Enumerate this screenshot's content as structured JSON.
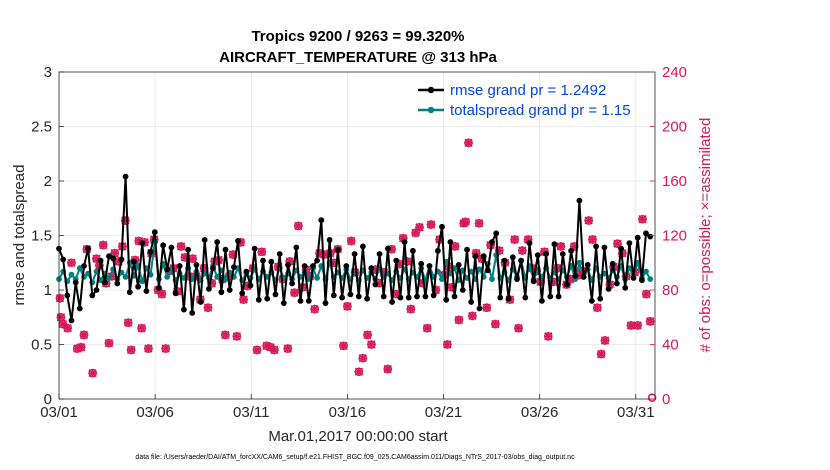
{
  "chart_data": {
    "type": "line",
    "title": "Tropics 9200 / 9263 = 99.320%",
    "subtitle": "AIRCRAFT_TEMPERATURE @ 313 hPa",
    "xlabel": "Mar.01,2017 00:00:00 start",
    "ylabel": "rmse and totalspread",
    "y2label": "# of obs: o=possible; ×=assimilated",
    "footnote": "data file: /Users/raeder/DAI/ATM_forcXX/CAM6_setup/f.e21.FHIST_BGC.f09_025.CAM6assim.011/Diags_NTrS_2017-03/obs_diag_output.nc",
    "x_tick_labels": [
      "03/01",
      "03/06",
      "03/11",
      "03/16",
      "03/21",
      "03/26",
      "03/31"
    ],
    "x_ticks_day": [
      0,
      5,
      10,
      15,
      20,
      25,
      30
    ],
    "xlim": [
      0,
      31
    ],
    "ylim": [
      0,
      3
    ],
    "y_tick_labels": [
      "0",
      "0.5",
      "1",
      "1.5",
      "2",
      "2.5",
      "3"
    ],
    "y2lim": [
      0,
      240
    ],
    "y2_tick_labels": [
      "0",
      "40",
      "80",
      "120",
      "160",
      "200",
      "240"
    ],
    "colors": {
      "rmse": "#000000",
      "spread": "#008080",
      "obs": "#d6195a",
      "legend_text": "#0046e0"
    },
    "series": [
      {
        "name": "rmse grand pr = 1.2492",
        "key": "rmse",
        "values": [
          1.38,
          1.28,
          0.95,
          0.72,
          1.07,
          0.83,
          1.22,
          1.38,
          0.95,
          1.0,
          1.27,
          1.07,
          1.31,
          1.29,
          1.06,
          1.28,
          2.04,
          0.98,
          1.26,
          1.03,
          1.43,
          0.99,
          1.35,
          1.53,
          1.02,
          1.41,
          1.19,
          1.39,
          0.97,
          1.22,
          0.82,
          1.37,
          0.79,
          1.23,
          0.89,
          1.46,
          1.01,
          1.2,
          1.44,
          0.98,
          1.37,
          1.0,
          1.21,
          1.45,
          0.97,
          1.17,
          1.04,
          1.38,
          0.91,
          1.27,
          0.92,
          1.26,
          0.96,
          1.33,
          0.88,
          1.23,
          1.06,
          1.39,
          0.9,
          1.22,
          0.9,
          1.22,
          1.27,
          1.64,
          0.88,
          1.46,
          0.95,
          1.37,
          0.93,
          1.22,
          0.96,
          1.33,
          0.94,
          1.4,
          0.92,
          1.2,
          1.05,
          1.33,
          0.94,
          1.38,
          0.89,
          1.27,
          0.93,
          1.44,
          0.93,
          1.36,
          0.94,
          1.24,
          0.94,
          1.22,
          0.95,
          1.36,
          1.58,
          0.91,
          1.44,
          0.94,
          1.23,
          1.0,
          1.37,
          0.89,
          1.31,
          0.83,
          1.31,
          1.18,
          1.44,
          1.52,
          0.93,
          1.27,
          0.92,
          1.3,
          1.1,
          1.27,
          0.93,
          1.43,
          1.08,
          1.32,
          0.9,
          1.33,
          0.94,
          1.42,
          0.94,
          1.33,
          1.05,
          1.36,
          1.13,
          1.82,
          1.12,
          1.23,
          0.9,
          1.4,
          0.92,
          1.39,
          1.01,
          1.24,
          1.06,
          1.38,
          1.02,
          1.43,
          1.11,
          1.48,
          1.09,
          1.52,
          1.49
        ]
      },
      {
        "name": "totalspread grand pr = 1.15",
        "key": "spread",
        "values": [
          1.1,
          1.17,
          1.08,
          1.14,
          1.1,
          1.2,
          1.12,
          1.15,
          1.07,
          1.17,
          1.09,
          1.15,
          1.11,
          1.19,
          1.1,
          1.16,
          1.12,
          1.25,
          1.13,
          1.22,
          1.08,
          1.2,
          1.14,
          1.44,
          1.1,
          1.24,
          1.12,
          1.18,
          1.09,
          1.15,
          1.11,
          1.2,
          1.1,
          1.17,
          1.09,
          1.15,
          1.11,
          1.22,
          1.12,
          1.18,
          1.1,
          1.16,
          1.12,
          1.2,
          1.09,
          1.15,
          1.11,
          1.19,
          1.1,
          1.17,
          1.12,
          1.16,
          1.09,
          1.2,
          1.11,
          1.15,
          1.1,
          1.18,
          1.12,
          1.16,
          1.1,
          1.2,
          1.11,
          1.22,
          1.1,
          1.25,
          1.12,
          1.16,
          1.11,
          1.19,
          1.1,
          1.15,
          1.09,
          1.18,
          1.11,
          1.16,
          1.1,
          1.2,
          1.12,
          1.15,
          1.09,
          1.17,
          1.11,
          1.19,
          1.1,
          1.16,
          1.12,
          1.2,
          1.09,
          1.22,
          1.12,
          1.17,
          1.1,
          1.26,
          1.15,
          1.2,
          1.09,
          1.18,
          1.11,
          1.17,
          1.1,
          1.19,
          1.12,
          1.24,
          1.1,
          1.32,
          1.11,
          1.16,
          1.09,
          1.19,
          1.12,
          1.27,
          1.11,
          1.22,
          1.1,
          1.18,
          1.12,
          1.2,
          1.11,
          1.16,
          1.1,
          1.18,
          1.12,
          1.22,
          1.1,
          1.25,
          1.12,
          1.19,
          1.09,
          1.2,
          1.12,
          1.15,
          1.11,
          1.18,
          1.12,
          1.22,
          1.1,
          1.2,
          1.14,
          1.25,
          1.11,
          1.17,
          1.1
        ]
      }
    ],
    "obs_possible": [
      [
        0.05,
        74
      ],
      [
        0.1,
        60
      ],
      [
        0.2,
        55
      ],
      [
        0.45,
        52
      ],
      [
        0.65,
        100
      ],
      [
        0.95,
        37
      ],
      [
        1.15,
        38
      ],
      [
        1.3,
        47
      ],
      [
        1.45,
        110
      ],
      [
        1.75,
        19
      ],
      [
        1.95,
        103
      ],
      [
        2.1,
        98
      ],
      [
        2.3,
        113
      ],
      [
        2.45,
        85
      ],
      [
        2.6,
        41
      ],
      [
        2.75,
        90
      ],
      [
        2.9,
        107
      ],
      [
        3.1,
        101
      ],
      [
        3.3,
        112
      ],
      [
        3.45,
        131
      ],
      [
        3.6,
        56
      ],
      [
        3.75,
        36
      ],
      [
        3.95,
        102
      ],
      [
        4.15,
        116
      ],
      [
        4.3,
        52
      ],
      [
        4.45,
        115
      ],
      [
        4.65,
        37
      ],
      [
        4.8,
        107
      ],
      [
        4.95,
        117
      ],
      [
        5.15,
        80
      ],
      [
        5.35,
        77
      ],
      [
        5.55,
        37
      ],
      [
        5.75,
        94
      ],
      [
        5.95,
        96
      ],
      [
        6.15,
        79
      ],
      [
        6.35,
        112
      ],
      [
        6.55,
        104
      ],
      [
        6.75,
        90
      ],
      [
        6.95,
        103
      ],
      [
        7.15,
        90
      ],
      [
        7.35,
        73
      ],
      [
        7.55,
        96
      ],
      [
        7.75,
        67
      ],
      [
        7.95,
        85
      ],
      [
        8.1,
        101
      ],
      [
        8.3,
        102
      ],
      [
        8.5,
        88
      ],
      [
        8.65,
        47
      ],
      [
        8.85,
        90
      ],
      [
        9.05,
        106
      ],
      [
        9.25,
        46
      ],
      [
        9.45,
        115
      ],
      [
        9.6,
        73
      ],
      [
        9.8,
        83
      ],
      [
        10.1,
        96
      ],
      [
        10.3,
        36
      ],
      [
        10.55,
        108
      ],
      [
        10.8,
        39
      ],
      [
        11.0,
        38
      ],
      [
        11.2,
        36
      ],
      [
        11.4,
        97
      ],
      [
        11.65,
        88
      ],
      [
        11.9,
        37
      ],
      [
        12.0,
        101
      ],
      [
        12.25,
        78
      ],
      [
        12.45,
        127
      ],
      [
        12.65,
        82
      ],
      [
        12.85,
        95
      ],
      [
        13.05,
        90
      ],
      [
        13.3,
        66
      ],
      [
        13.55,
        107
      ],
      [
        13.8,
        106
      ],
      [
        14.1,
        107
      ],
      [
        14.3,
        100
      ],
      [
        14.5,
        110
      ],
      [
        14.8,
        39
      ],
      [
        15.0,
        68
      ],
      [
        15.2,
        116
      ],
      [
        15.4,
        93
      ],
      [
        15.6,
        20
      ],
      [
        15.8,
        30
      ],
      [
        16.05,
        47
      ],
      [
        16.25,
        40
      ],
      [
        16.45,
        95
      ],
      [
        16.65,
        85
      ],
      [
        16.9,
        93
      ],
      [
        17.1,
        22
      ],
      [
        17.3,
        110
      ],
      [
        17.55,
        77
      ],
      [
        17.7,
        99
      ],
      [
        17.9,
        118
      ],
      [
        18.1,
        101
      ],
      [
        18.3,
        66
      ],
      [
        18.55,
        122
      ],
      [
        18.75,
        126
      ],
      [
        18.95,
        85
      ],
      [
        19.15,
        52
      ],
      [
        19.35,
        128
      ],
      [
        19.6,
        80
      ],
      [
        19.8,
        117
      ],
      [
        20.0,
        91
      ],
      [
        20.2,
        40
      ],
      [
        20.3,
        97
      ],
      [
        20.45,
        82
      ],
      [
        20.6,
        112
      ],
      [
        20.8,
        58
      ],
      [
        21.05,
        129
      ],
      [
        21.15,
        130
      ],
      [
        21.3,
        188
      ],
      [
        21.5,
        61
      ],
      [
        21.7,
        107
      ],
      [
        21.85,
        129
      ],
      [
        22.0,
        103
      ],
      [
        22.25,
        67
      ],
      [
        22.45,
        113
      ],
      [
        22.7,
        55
      ],
      [
        22.9,
        109
      ],
      [
        23.2,
        100
      ],
      [
        23.45,
        73
      ],
      [
        23.7,
        117
      ],
      [
        23.9,
        52
      ],
      [
        24.1,
        109
      ],
      [
        24.4,
        117
      ],
      [
        24.6,
        96
      ],
      [
        24.85,
        94
      ],
      [
        25.05,
        86
      ],
      [
        25.25,
        108
      ],
      [
        25.45,
        46
      ],
      [
        25.7,
        86
      ],
      [
        25.95,
        96
      ],
      [
        26.1,
        112
      ],
      [
        26.4,
        84
      ],
      [
        26.6,
        88
      ],
      [
        26.8,
        112
      ],
      [
        27.05,
        91
      ],
      [
        27.25,
        94
      ],
      [
        27.55,
        131
      ],
      [
        27.75,
        117
      ],
      [
        28.0,
        67
      ],
      [
        28.2,
        33
      ],
      [
        28.4,
        43
      ],
      [
        28.65,
        84
      ],
      [
        28.85,
        97
      ],
      [
        29.05,
        114
      ],
      [
        29.3,
        107
      ],
      [
        29.5,
        90
      ],
      [
        29.75,
        54
      ],
      [
        29.95,
        93
      ],
      [
        30.1,
        54
      ],
      [
        30.35,
        132
      ],
      [
        30.55,
        77
      ],
      [
        30.75,
        57
      ],
      [
        30.85,
        1
      ]
    ],
    "obs_assimilated_note": "crosses overlay circles at the same positions"
  }
}
